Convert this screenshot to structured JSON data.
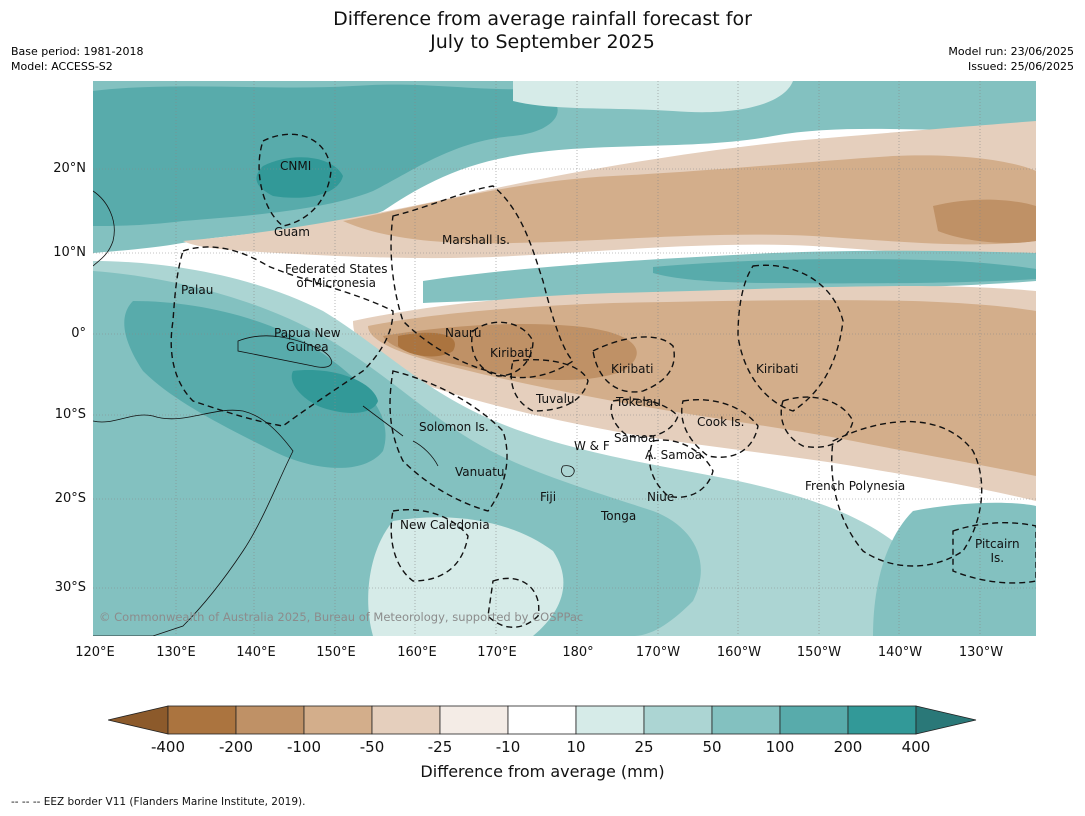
{
  "header": {
    "title_line1": "Difference from average rainfall forecast for",
    "title_line2": "July to September 2025",
    "base_period": "Base period: 1981-2018",
    "model": "Model: ACCESS-S2",
    "model_run": "Model run: 23/06/2025",
    "issued": "Issued: 25/06/2025"
  },
  "map": {
    "lat_labels": [
      "20°N",
      "10°N",
      "0°",
      "10°S",
      "20°S",
      "30°S"
    ],
    "lon_labels": [
      "120°E",
      "130°E",
      "140°E",
      "150°E",
      "160°E",
      "170°E",
      "180°",
      "170°W",
      "160°W",
      "150°W",
      "140°W",
      "130°W"
    ],
    "places": {
      "cnmi": "CNMI",
      "guam": "Guam",
      "marshall": "Marshall Is.",
      "fsm_line1": "Federated States",
      "fsm_line2": "of Micronesia",
      "palau": "Palau",
      "png_line1": "Papua New",
      "png_line2": "Guinea",
      "nauru": "Nauru",
      "kiribati_west": "Kiribati",
      "kiribati_central": "Kiribati",
      "kiribati_east": "Kiribati",
      "tuvalu": "Tuvalu",
      "tokelau": "Tokelau",
      "cook": "Cook Is.",
      "solomon": "Solomon Is.",
      "samoa": "Samoa",
      "wf": "W & F",
      "asamoa": "A. Samoa",
      "vanuatu": "Vanuatu",
      "fiji": "Fiji",
      "niue": "Niue",
      "tonga": "Tonga",
      "french_polynesia": "French Polynesia",
      "new_caledonia": "New Caledonia",
      "pitcairn_line1": "Pitcairn",
      "pitcairn_line2": "Is."
    },
    "copyright": "© Commonwealth of Australia 2025, Bureau of Meteorology, supported by COSPPac"
  },
  "colorbar": {
    "labels": [
      "-400",
      "-200",
      "-100",
      "-50",
      "-25",
      "-10",
      "10",
      "25",
      "50",
      "100",
      "200",
      "400"
    ],
    "colors": [
      "#8c5a2b",
      "#ab743f",
      "#bf9166",
      "#d3ae8b",
      "#e5cfbd",
      "#f4ece6",
      "#ffffff",
      "#d6ebe8",
      "#acd5d3",
      "#83c1c0",
      "#58abab",
      "#329998",
      "#2a7878"
    ],
    "title": "Difference from average (mm)"
  },
  "footer": {
    "eez": "--  --  -- EEZ border V11 (Flanders Marine Institute, 2019)."
  }
}
